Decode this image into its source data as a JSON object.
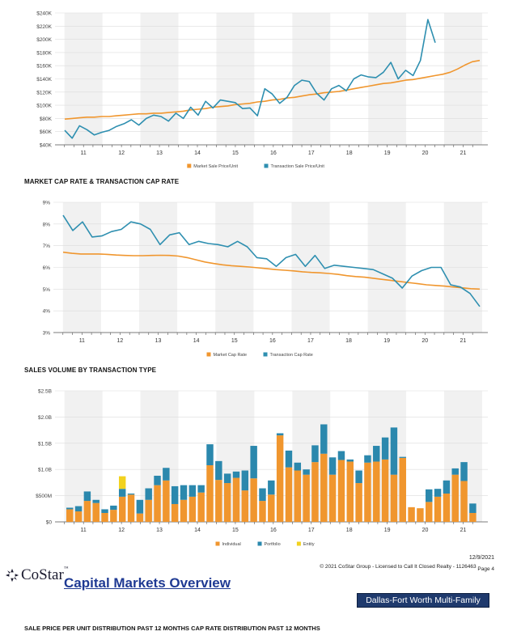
{
  "chart_data": [
    {
      "type": "line",
      "title": "",
      "x": [
        10.2,
        10.4,
        10.6,
        10.8,
        11.0,
        11.2,
        11.4,
        11.6,
        11.8,
        12.0,
        12.2,
        12.4,
        12.6,
        12.8,
        13.0,
        13.2,
        13.4,
        13.6,
        13.8,
        14.0,
        14.2,
        14.4,
        14.6,
        14.8,
        15.0,
        15.2,
        15.4,
        15.6,
        15.8,
        16.0,
        16.2,
        16.4,
        16.6,
        16.8,
        17.0,
        17.2,
        17.4,
        17.6,
        17.8,
        18.0,
        18.2,
        18.4,
        18.6,
        18.8,
        19.0,
        19.2,
        19.4,
        19.6,
        19.8,
        20.0,
        20.2,
        20.4,
        20.6,
        20.8,
        21.0,
        21.2,
        21.4
      ],
      "series": [
        {
          "name": "Market Sale Price/Unit",
          "color": "#f0962e",
          "values": [
            79,
            80,
            81,
            82,
            82,
            83,
            83,
            84,
            85,
            86,
            87,
            87,
            88,
            88,
            89,
            90,
            91,
            93,
            94,
            95,
            97,
            98,
            99,
            101,
            102,
            103,
            105,
            106,
            108,
            109,
            111,
            112,
            114,
            116,
            117,
            119,
            120,
            121,
            123,
            125,
            127,
            129,
            131,
            133,
            134,
            136,
            138,
            139,
            141,
            143,
            145,
            147,
            150,
            155,
            161,
            166,
            168
          ]
        },
        {
          "name": "Transaction Sale Price/Unit",
          "color": "#2e8fb0",
          "values": [
            62,
            50,
            69,
            63,
            55,
            59,
            62,
            68,
            72,
            78,
            70,
            80,
            85,
            83,
            76,
            88,
            80,
            97,
            85,
            106,
            96,
            108,
            106,
            104,
            95,
            96,
            84,
            125,
            117,
            103,
            112,
            130,
            138,
            136,
            118,
            108,
            125,
            130,
            122,
            140,
            146,
            143,
            142,
            150,
            165,
            140,
            153,
            145,
            168,
            230,
            195,
            null,
            null,
            null,
            null,
            null,
            null
          ]
        }
      ],
      "xticks": [
        "11",
        "12",
        "13",
        "14",
        "15",
        "16",
        "17",
        "18",
        "19",
        "20",
        "21"
      ],
      "yticks": [
        "$40K",
        "$60K",
        "$80K",
        "$100K",
        "$120K",
        "$140K",
        "$160K",
        "$180K",
        "$200K",
        "$220K",
        "$240K"
      ],
      "ylim": [
        40,
        240
      ],
      "legend": [
        "Market Sale Price/Unit",
        "Transaction Sale Price/Unit"
      ]
    },
    {
      "type": "line",
      "title": "MARKET CAP RATE & TRANSACTION CAP RATE",
      "series": [
        {
          "name": "Market Cap Rate",
          "color": "#f0962e",
          "values": [
            6.7,
            6.65,
            6.62,
            6.62,
            6.62,
            6.6,
            6.57,
            6.55,
            6.54,
            6.54,
            6.55,
            6.56,
            6.55,
            6.52,
            6.45,
            6.35,
            6.25,
            6.18,
            6.12,
            6.08,
            6.05,
            6.02,
            5.98,
            5.94,
            5.9,
            5.87,
            5.84,
            5.8,
            5.77,
            5.75,
            5.72,
            5.68,
            5.62,
            5.58,
            5.55,
            5.5,
            5.45,
            5.4,
            5.35,
            5.3,
            5.25,
            5.2,
            5.17,
            5.14,
            5.1,
            5.06,
            5.02,
            5.0
          ]
        },
        {
          "name": "Transaction Cap Rate",
          "color": "#2e8fb0",
          "values": [
            8.4,
            7.7,
            8.1,
            7.4,
            7.45,
            7.65,
            7.75,
            8.1,
            8.0,
            7.75,
            7.05,
            7.5,
            7.6,
            7.05,
            7.2,
            7.1,
            7.05,
            6.95,
            7.2,
            6.95,
            6.45,
            6.4,
            6.05,
            6.45,
            6.6,
            6.05,
            6.55,
            5.95,
            6.1,
            6.05,
            6.0,
            5.95,
            5.9,
            5.7,
            5.5,
            5.05,
            5.6,
            5.85,
            6.0,
            6.0,
            5.2,
            5.1,
            4.8,
            4.2
          ]
        }
      ],
      "xticks": [
        "11",
        "12",
        "13",
        "14",
        "15",
        "16",
        "17",
        "18",
        "19",
        "20",
        "21"
      ],
      "yticks": [
        "3%",
        "4%",
        "5%",
        "6%",
        "7%",
        "8%",
        "9%"
      ],
      "ylim": [
        3,
        9
      ],
      "legend": [
        "Market Cap Rate",
        "Transaction Cap Rate"
      ]
    },
    {
      "type": "bar",
      "title": "SALES VOLUME BY TRANSACTION TYPE",
      "units": "$M",
      "series": [
        {
          "name": "Individual",
          "color": "#f0962e",
          "values": [
            240,
            200,
            400,
            360,
            170,
            230,
            480,
            520,
            160,
            420,
            700,
            790,
            340,
            420,
            480,
            560,
            1080,
            800,
            740,
            840,
            600,
            830,
            400,
            520,
            1650,
            1040,
            980,
            900,
            1140,
            1300,
            900,
            1180,
            1150,
            740,
            1130,
            1150,
            1190,
            900,
            1220,
            280,
            260,
            380,
            480,
            540,
            900,
            780,
            170
          ]
        },
        {
          "name": "Portfolio",
          "color": "#2b88ad",
          "values": [
            30,
            100,
            180,
            60,
            70,
            80,
            150,
            20,
            260,
            220,
            180,
            240,
            340,
            280,
            220,
            140,
            400,
            360,
            180,
            120,
            380,
            620,
            240,
            270,
            40,
            320,
            150,
            100,
            320,
            560,
            330,
            170,
            40,
            240,
            140,
            300,
            420,
            900,
            20,
            0,
            0,
            240,
            150,
            250,
            120,
            360,
            180
          ]
        },
        {
          "name": "Entity",
          "color": "#f2d21f",
          "values": [
            0,
            0,
            0,
            0,
            0,
            0,
            240,
            0,
            0,
            0,
            0,
            0,
            0,
            0,
            0,
            0,
            0,
            0,
            0,
            0,
            0,
            0,
            0,
            0,
            0,
            0,
            0,
            0,
            0,
            0,
            0,
            0,
            0,
            0,
            0,
            0,
            0,
            0,
            0,
            0,
            0,
            0,
            0,
            0,
            0,
            0,
            0
          ]
        }
      ],
      "xticks": [
        "11",
        "12",
        "13",
        "14",
        "15",
        "16",
        "17",
        "18",
        "19",
        "20",
        "21"
      ],
      "yticks": [
        "$0",
        "$500M",
        "$1.0B",
        "$1.5B",
        "$2.0B",
        "$2.5B"
      ],
      "ylim": [
        0,
        2500
      ],
      "legend": [
        "Individual",
        "Portfolio",
        "Entity"
      ]
    }
  ],
  "sections": {
    "cap_rate_title": "MARKET CAP RATE & TRANSACTION CAP RATE",
    "sales_volume_title": "SALES VOLUME BY TRANSACTION TYPE",
    "bottom_title": "SALE PRICE PER UNIT DISTRIBUTION PAST 12 MONTHS CAP RATE DISTRIBUTION PAST 12 MONTHS"
  },
  "footer": {
    "date": "12/9/2021",
    "copyright": "© 2021 CoStar Group - Licensed to Call It Closed Realty - 1126463",
    "page": "Page 4",
    "logo_text": "CoStar",
    "logo_tm": "™",
    "report_title": "Capital Markets Overview",
    "market": "Dallas-Fort Worth Multi-Family"
  },
  "colors": {
    "orange": "#f0962e",
    "blue": "#2e8fb0",
    "yellow": "#f2d21f",
    "badge": "#1f3a6d",
    "title_blue": "#1f3a93"
  }
}
